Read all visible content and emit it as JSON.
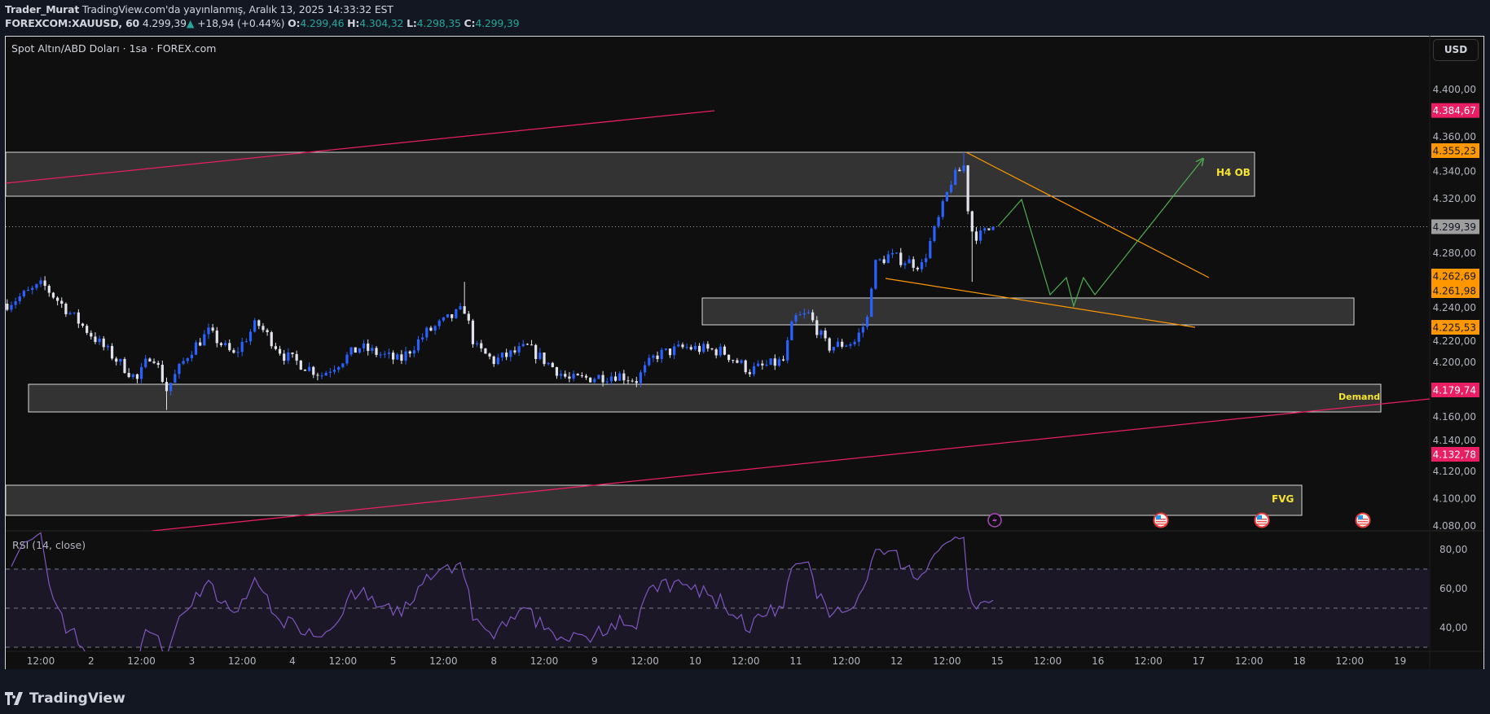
{
  "header": {
    "author": "Trader_Murat",
    "published": "TradingView.com'da yayınlanmış, Aralık 13, 2025 14:33:32 EST",
    "symbol": "FOREXCOM:XAUUSD, 60",
    "last": "4.299,39",
    "change_arrow": "▲",
    "change": "+18,94 (+0.44%)",
    "o_label": "O:",
    "o": "4.299,46",
    "h_label": "H:",
    "h": "4.304,32",
    "l_label": "L:",
    "l": "4.298,35",
    "c_label": "C:",
    "c": "4.299,39"
  },
  "chart": {
    "legend": "Spot Altın/ABD Doları · 1sa · FOREX.com",
    "currency": "USD",
    "zones": {
      "h4ob": "H4 OB",
      "demand": "Demand",
      "fvg": "FVG"
    },
    "rsi_label": "RSI (14, close)",
    "price_ticks": [
      "4.400,00",
      "4.360,00",
      "4.340,00",
      "4.320,00",
      "4.280,00",
      "4.240,00",
      "4.220,00",
      "4.200,00",
      "4.160,00",
      "4.140,00",
      "4.120,00",
      "4.100,00",
      "4.080,00"
    ],
    "price_badges": [
      {
        "text": "4.384,67",
        "color": "#e91e63",
        "fg": "#ffffff"
      },
      {
        "text": "4.355,23",
        "color": "#ff9800",
        "fg": "#131722"
      },
      {
        "text": "4.299,39",
        "color": "#9e9e9e",
        "fg": "#131722"
      },
      {
        "text": "4.262,69",
        "color": "#ff9800",
        "fg": "#131722"
      },
      {
        "text": "4.261,98",
        "color": "#ff9800",
        "fg": "#131722"
      },
      {
        "text": "4.225,53",
        "color": "#ff9800",
        "fg": "#131722"
      },
      {
        "text": "4.179,74",
        "color": "#e91e63",
        "fg": "#ffffff"
      },
      {
        "text": "4.132,78",
        "color": "#e91e63",
        "fg": "#ffffff"
      }
    ],
    "rsi_ticks": [
      "80,00",
      "60,00",
      "40,00"
    ],
    "time_labels": [
      "12:00",
      "2",
      "12:00",
      "3",
      "12:00",
      "4",
      "12:00",
      "5",
      "12:00",
      "8",
      "12:00",
      "9",
      "12:00",
      "10",
      "12:00",
      "11",
      "12:00",
      "12",
      "12:00",
      "15",
      "12:00",
      "16",
      "12:00",
      "17",
      "12:00",
      "18",
      "12:00",
      "19"
    ],
    "events": [
      "lightning-icon",
      "us-flag-icon",
      "us-flag-icon",
      "us-flag-icon"
    ]
  },
  "colors": {
    "up": "#2962ff",
    "down": "#e0e3eb",
    "trendline": "#e91e63",
    "wedge": "#ff9800",
    "projection": "#4caf50",
    "rsi": "#7e57c2",
    "zone_label": "#f5e431"
  },
  "chart_data": {
    "type": "candlestick",
    "interval": "1h",
    "trading_days": [
      1,
      2,
      3,
      4,
      5,
      8,
      9,
      10,
      11,
      12,
      15,
      16,
      17,
      18,
      19
    ],
    "price_range": [
      4080,
      4420
    ],
    "price_path": [
      [
        "1 04:00",
        4243
      ],
      [
        "1 12:30",
        4257
      ],
      [
        "1 19:00",
        4236
      ],
      [
        "2 03:00",
        4211
      ],
      [
        "2 11:00",
        4187
      ],
      [
        "2 14:30",
        4208
      ],
      [
        "2 18:00",
        4180
      ],
      [
        "2 23:30",
        4208
      ],
      [
        "3 04:00",
        4222
      ],
      [
        "3 10:00",
        4205
      ],
      [
        "3 15:30",
        4229
      ],
      [
        "3 22:00",
        4205
      ],
      [
        "4 07:00",
        4191
      ],
      [
        "4 16:00",
        4211
      ],
      [
        "5 01:30",
        4201
      ],
      [
        "5 08:00",
        4222
      ],
      [
        "5 17:00",
        4239
      ],
      [
        "5 19:30",
        4211
      ],
      [
        "8 00:00",
        4201
      ],
      [
        "8 08:00",
        4211
      ],
      [
        "8 18:00",
        4187
      ],
      [
        "9 05:30",
        4191
      ],
      [
        "9 10:00",
        4187
      ],
      [
        "9 14:30",
        4205
      ],
      [
        "9 21:30",
        4211
      ],
      [
        "10 06:30",
        4208
      ],
      [
        "10 13:00",
        4194
      ],
      [
        "10 21:00",
        4201
      ],
      [
        "10 23:30",
        4232
      ],
      [
        "11 03:00",
        4235
      ],
      [
        "11 07:30",
        4211
      ],
      [
        "11 14:00",
        4215
      ],
      [
        "11 17:00",
        4232
      ],
      [
        "11 18:30",
        4271
      ],
      [
        "11 22:00",
        4278
      ],
      [
        "12 01:30",
        4275
      ],
      [
        "12 06:00",
        4271
      ],
      [
        "12 10:30",
        4309
      ],
      [
        "12 13:00",
        4333
      ],
      [
        "12 16:00",
        4344
      ],
      [
        "12 17:30",
        4298
      ],
      [
        "12 19:30",
        4292
      ],
      [
        "12 23:00",
        4299.39
      ]
    ],
    "wicks": [
      [
        "2 18:00",
        4165
      ],
      [
        "5 17:00",
        4259
      ],
      [
        "12 16:00",
        4354
      ],
      [
        "12 18:00",
        4259
      ]
    ],
    "rsi": {
      "period": 14,
      "levels": [
        70,
        50,
        30
      ],
      "range": [
        20,
        90
      ]
    }
  }
}
